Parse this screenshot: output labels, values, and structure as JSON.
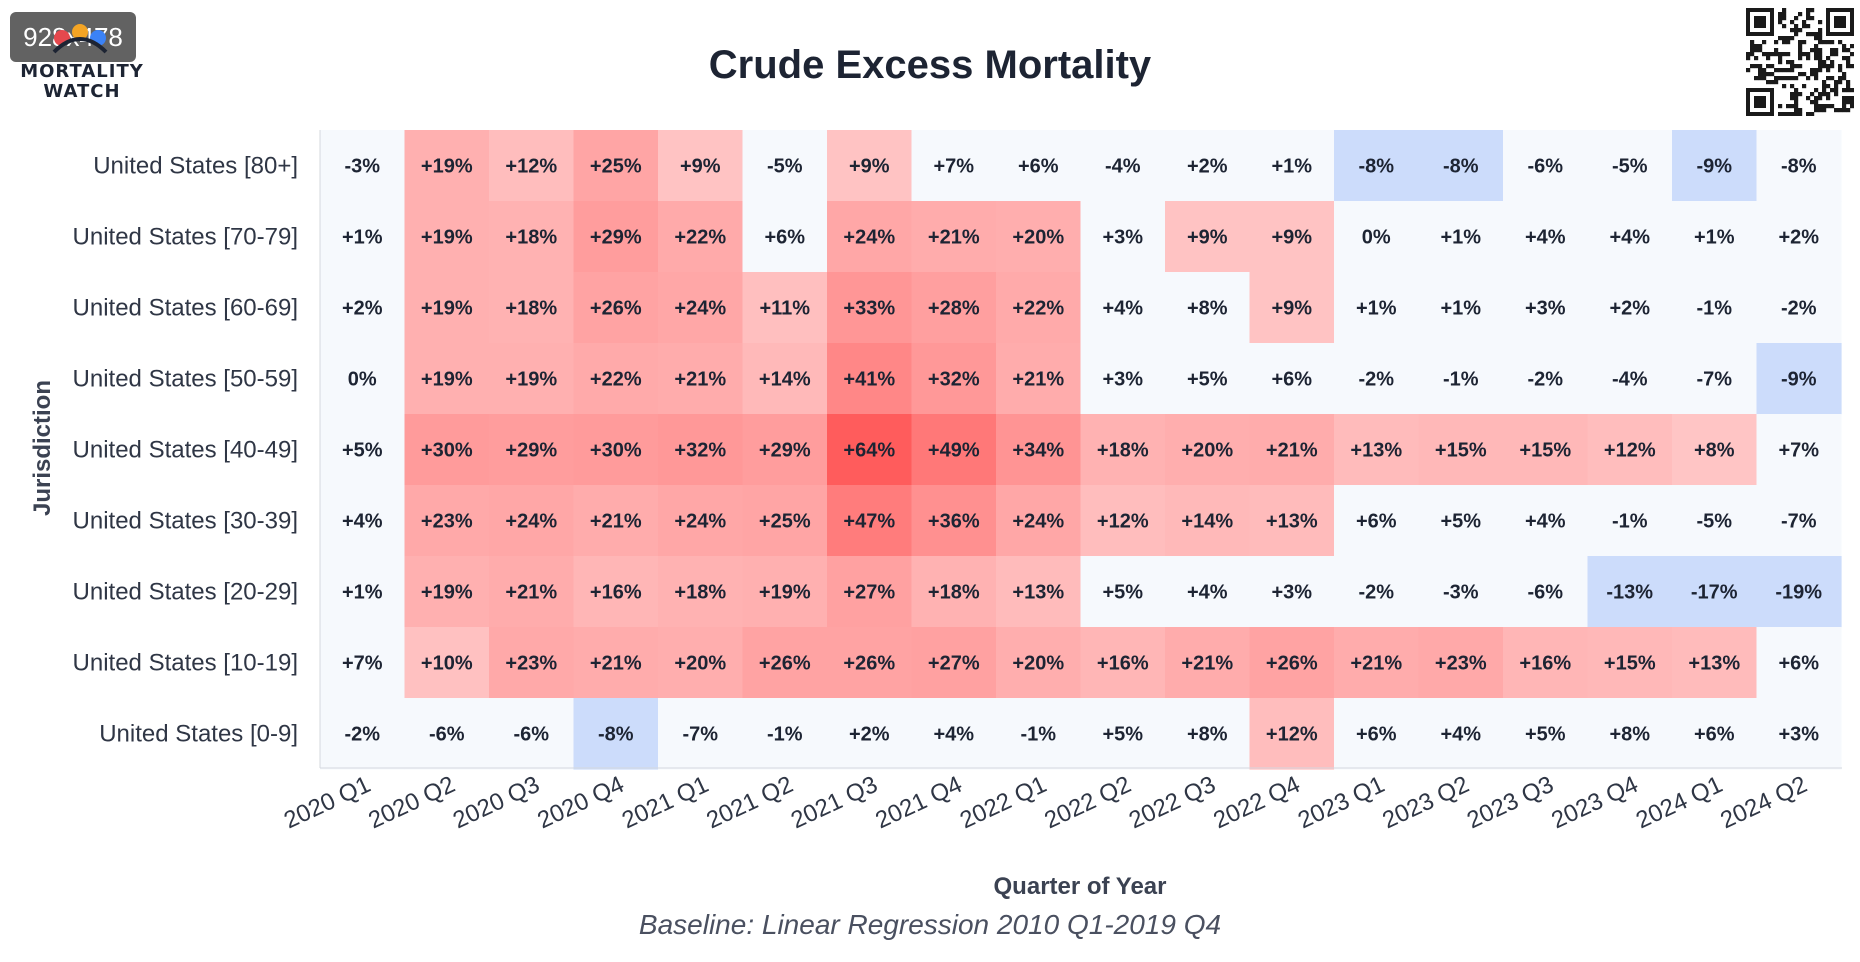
{
  "badge": "928x478",
  "logo": {
    "line1": "MORTALITY",
    "line2": "WATCH"
  },
  "icons": {
    "qr": "qr-code-icon",
    "logo": "mortality-watch-logo-icon"
  },
  "colors": {
    "positive": "#ff5a5a",
    "negative": "#ccdcfb",
    "neutral": "#f6f9fd",
    "text": "#1d2433"
  },
  "chart_data": {
    "type": "heatmap",
    "title": "Crude Excess Mortality",
    "xlabel": "Quarter of Year",
    "ylabel": "Jurisdiction",
    "caption": "Baseline: Linear Regression 2010 Q1-2019 Q4",
    "x": [
      "2020 Q1",
      "2020 Q2",
      "2020 Q3",
      "2020 Q4",
      "2021 Q1",
      "2021 Q2",
      "2021 Q3",
      "2021 Q4",
      "2022 Q1",
      "2022 Q2",
      "2022 Q3",
      "2022 Q4",
      "2023 Q1",
      "2023 Q2",
      "2023 Q3",
      "2023 Q4",
      "2024 Q1",
      "2024 Q2"
    ],
    "y": [
      "United States [80+]",
      "United States [70-79]",
      "United States [60-69]",
      "United States [50-59]",
      "United States [40-49]",
      "United States [30-39]",
      "United States [20-29]",
      "United States [10-19]",
      "United States [0-9]"
    ],
    "values": [
      [
        -3,
        19,
        12,
        25,
        9,
        -5,
        9,
        7,
        6,
        -4,
        2,
        1,
        -8,
        -8,
        -6,
        -5,
        -9,
        -8
      ],
      [
        1,
        19,
        18,
        29,
        22,
        6,
        24,
        21,
        20,
        3,
        9,
        9,
        0,
        1,
        4,
        4,
        1,
        2
      ],
      [
        2,
        19,
        18,
        26,
        24,
        11,
        33,
        28,
        22,
        4,
        8,
        9,
        1,
        1,
        3,
        2,
        -1,
        -2
      ],
      [
        0,
        19,
        19,
        22,
        21,
        14,
        41,
        32,
        21,
        3,
        5,
        6,
        -2,
        -1,
        -2,
        -4,
        -7,
        -9
      ],
      [
        5,
        30,
        29,
        30,
        32,
        29,
        64,
        49,
        34,
        18,
        20,
        21,
        13,
        15,
        15,
        12,
        8,
        7
      ],
      [
        4,
        23,
        24,
        21,
        24,
        25,
        47,
        36,
        24,
        12,
        14,
        13,
        6,
        5,
        4,
        -1,
        -5,
        -7
      ],
      [
        1,
        19,
        21,
        16,
        18,
        19,
        27,
        18,
        13,
        5,
        4,
        3,
        -2,
        -3,
        -6,
        -13,
        -17,
        -19
      ],
      [
        7,
        10,
        23,
        21,
        20,
        26,
        26,
        27,
        20,
        16,
        21,
        26,
        21,
        23,
        16,
        15,
        13,
        6
      ],
      [
        -2,
        -6,
        -6,
        -8,
        -7,
        -1,
        2,
        4,
        -1,
        5,
        8,
        12,
        6,
        4,
        5,
        8,
        6,
        3
      ]
    ],
    "cell_labels": [
      [
        "-3%",
        "+19%",
        "+12%",
        "+25%",
        "+9%",
        "-5%",
        "+9%",
        "+7%",
        "+6%",
        "-4%",
        "+2%",
        "+1%",
        "-8%",
        "-8%",
        "-6%",
        "-5%",
        "-9%",
        "-8%"
      ],
      [
        "+1%",
        "+19%",
        "+18%",
        "+29%",
        "+22%",
        "+6%",
        "+24%",
        "+21%",
        "+20%",
        "+3%",
        "+9%",
        "+9%",
        "0%",
        "+1%",
        "+4%",
        "+4%",
        "+1%",
        "+2%"
      ],
      [
        "+2%",
        "+19%",
        "+18%",
        "+26%",
        "+24%",
        "+11%",
        "+33%",
        "+28%",
        "+22%",
        "+4%",
        "+8%",
        "+9%",
        "+1%",
        "+1%",
        "+3%",
        "+2%",
        "-1%",
        "-2%"
      ],
      [
        "0%",
        "+19%",
        "+19%",
        "+22%",
        "+21%",
        "+14%",
        "+41%",
        "+32%",
        "+21%",
        "+3%",
        "+5%",
        "+6%",
        "-2%",
        "-1%",
        "-2%",
        "-4%",
        "-7%",
        "-9%"
      ],
      [
        "+5%",
        "+30%",
        "+29%",
        "+30%",
        "+32%",
        "+29%",
        "+64%",
        "+49%",
        "+34%",
        "+18%",
        "+20%",
        "+21%",
        "+13%",
        "+15%",
        "+15%",
        "+12%",
        "+8%",
        "+7%"
      ],
      [
        "+4%",
        "+23%",
        "+24%",
        "+21%",
        "+24%",
        "+25%",
        "+47%",
        "+36%",
        "+24%",
        "+12%",
        "+14%",
        "+13%",
        "+6%",
        "+5%",
        "+4%",
        "-1%",
        "-5%",
        "-7%"
      ],
      [
        "+1%",
        "+19%",
        "+21%",
        "+16%",
        "+18%",
        "+19%",
        "+27%",
        "+18%",
        "+13%",
        "+5%",
        "+4%",
        "+3%",
        "-2%",
        "-3%",
        "-6%",
        "-13%",
        "-17%",
        "-19%"
      ],
      [
        "+7%",
        "+10%",
        "+23%",
        "+21%",
        "+20%",
        "+26%",
        "+26%",
        "+27%",
        "+20%",
        "+16%",
        "+21%",
        "+26%",
        "+21%",
        "+23%",
        "+16%",
        "+15%",
        "+13%",
        "+6%"
      ],
      [
        "-2%",
        "-6%",
        "-6%",
        "-8%",
        "-7%",
        "-1%",
        "+2%",
        "+4%",
        "-1%",
        "+5%",
        "+8%",
        "+12%",
        "+6%",
        "+4%",
        "+5%",
        "+8%",
        "+6%",
        "+3%"
      ]
    ],
    "sig_mask": [
      [
        0,
        1,
        1,
        1,
        1,
        0,
        1,
        0,
        0,
        0,
        0,
        0,
        1,
        1,
        0,
        0,
        1,
        0
      ],
      [
        0,
        1,
        1,
        1,
        1,
        0,
        1,
        1,
        1,
        0,
        1,
        1,
        0,
        0,
        0,
        0,
        0,
        0
      ],
      [
        0,
        1,
        1,
        1,
        1,
        1,
        1,
        1,
        1,
        0,
        0,
        1,
        0,
        0,
        0,
        0,
        0,
        0
      ],
      [
        0,
        1,
        1,
        1,
        1,
        1,
        1,
        1,
        1,
        0,
        0,
        0,
        0,
        0,
        0,
        0,
        0,
        1
      ],
      [
        0,
        1,
        1,
        1,
        1,
        1,
        1,
        1,
        1,
        1,
        1,
        1,
        1,
        1,
        1,
        1,
        1,
        0
      ],
      [
        0,
        1,
        1,
        1,
        1,
        1,
        1,
        1,
        1,
        1,
        1,
        1,
        0,
        0,
        0,
        0,
        0,
        0
      ],
      [
        0,
        1,
        1,
        1,
        1,
        1,
        1,
        1,
        1,
        0,
        0,
        0,
        0,
        0,
        0,
        1,
        1,
        1
      ],
      [
        0,
        1,
        1,
        1,
        1,
        1,
        1,
        1,
        1,
        1,
        1,
        1,
        1,
        1,
        1,
        1,
        1,
        0
      ],
      [
        0,
        0,
        0,
        1,
        0,
        0,
        0,
        0,
        0,
        0,
        0,
        1,
        0,
        0,
        0,
        0,
        0,
        0
      ]
    ]
  }
}
